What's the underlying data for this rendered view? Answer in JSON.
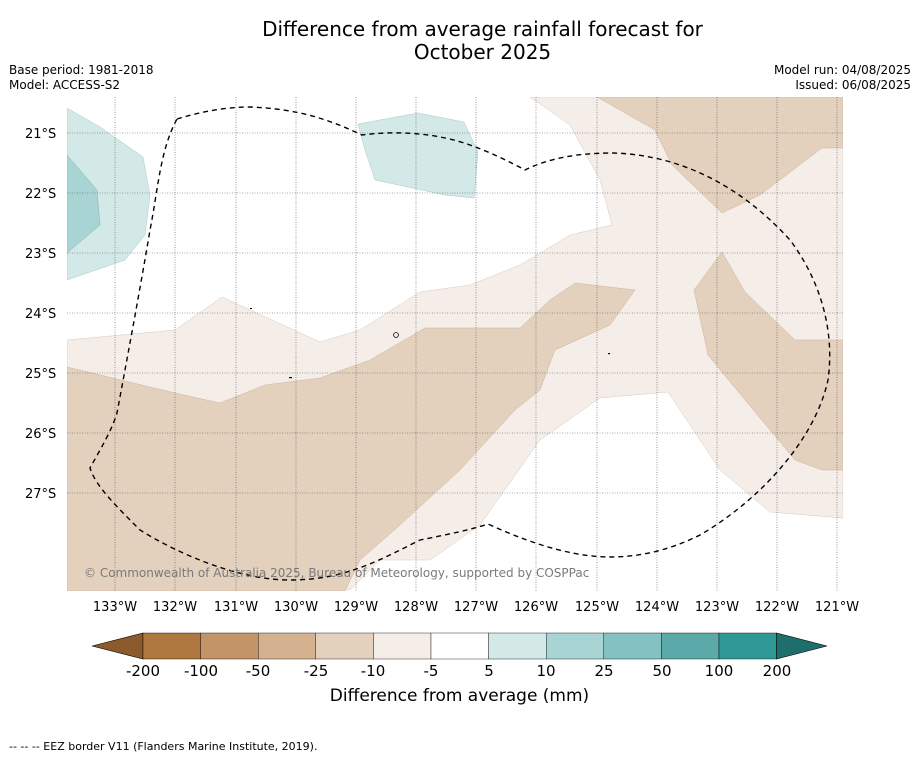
{
  "title": {
    "line1": "Difference from average rainfall forecast for",
    "line2": "October 2025"
  },
  "meta_left": {
    "base_period": "Base period: 1981-2018",
    "model": "Model: ACCESS-S2"
  },
  "meta_right": {
    "model_run": "Model run: 04/08/2025",
    "issued": "Issued: 06/08/2025"
  },
  "copyright": "© Commonwealth of Australia 2025, Bureau of Meteorology, supported by COSPPac",
  "map": {
    "lat_labels": [
      "21°S",
      "22°S",
      "23°S",
      "24°S",
      "25°S",
      "26°S",
      "27°S"
    ],
    "lon_labels": [
      "133°W",
      "132°W",
      "131°W",
      "130°W",
      "129°W",
      "128°W",
      "127°W",
      "126°W",
      "125°W",
      "124°W",
      "123°W",
      "122°W",
      "121°W"
    ]
  },
  "colorbar": {
    "ticks": [
      "-200",
      "-100",
      "-50",
      "-25",
      "-10",
      "-5",
      "5",
      "10",
      "25",
      "50",
      "100",
      "200"
    ],
    "colors": [
      "#8c5a2b",
      "#ae7740",
      "#c39468",
      "#d4b28f",
      "#e3d0bd",
      "#f5ede8",
      "#ffffff",
      "#d3e9e8",
      "#a8d4d3",
      "#83c2c0",
      "#5ba9a8",
      "#2f9996",
      "#1e6f6c"
    ],
    "label": "Difference from average (mm)"
  },
  "footer": "--  --  -- EEZ border V11 (Flanders Marine Institute, 2019)."
}
